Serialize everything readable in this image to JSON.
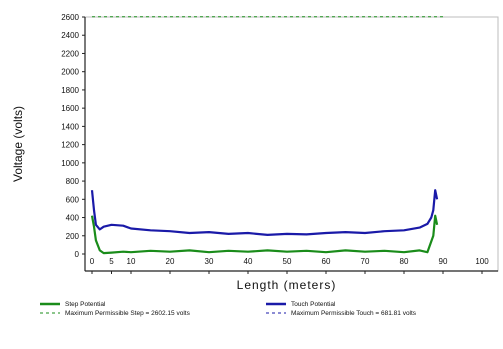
{
  "chart_data": {
    "type": "line",
    "title": "",
    "xlabel": "Length (meters)",
    "ylabel": "Voltage (volts)",
    "xlim": [
      0,
      100
    ],
    "ylim": [
      0,
      2600
    ],
    "x_ticks": [
      "0",
      "5",
      "10",
      "20",
      "30",
      "40",
      "50",
      "60",
      "70",
      "80",
      "90",
      "100"
    ],
    "x_tick_values": [
      0,
      5,
      10,
      20,
      30,
      40,
      50,
      60,
      70,
      80,
      90,
      100
    ],
    "y_ticks": [
      "0",
      "200",
      "400",
      "600",
      "800",
      "1000",
      "1200",
      "1400",
      "1600",
      "1800",
      "2000",
      "2200",
      "2400",
      "2600"
    ],
    "y_tick_values": [
      0,
      200,
      400,
      600,
      800,
      1000,
      1200,
      1400,
      1600,
      1800,
      2000,
      2200,
      2400,
      2600
    ],
    "grid": false,
    "legend_position": "bottom",
    "series": [
      {
        "name": "Step Potential",
        "color": "#1a8c1a",
        "style": "solid",
        "x": [
          0,
          0.5,
          1,
          2,
          3,
          5,
          8,
          10,
          15,
          20,
          25,
          30,
          35,
          40,
          45,
          50,
          55,
          60,
          65,
          70,
          75,
          80,
          84,
          86,
          87.5,
          88,
          88.5
        ],
        "y": [
          420,
          300,
          150,
          40,
          10,
          15,
          25,
          20,
          35,
          25,
          40,
          20,
          35,
          25,
          40,
          25,
          35,
          20,
          40,
          25,
          35,
          20,
          40,
          20,
          200,
          420,
          320
        ]
      },
      {
        "name": "Touch Potential",
        "color": "#1a1aa8",
        "style": "solid",
        "x": [
          0,
          0.5,
          1,
          2,
          3,
          5,
          8,
          10,
          15,
          20,
          25,
          30,
          35,
          40,
          45,
          50,
          55,
          60,
          65,
          70,
          75,
          80,
          84,
          86,
          87,
          87.5,
          88,
          88.5
        ],
        "y": [
          700,
          480,
          320,
          270,
          300,
          320,
          310,
          280,
          260,
          250,
          230,
          240,
          220,
          230,
          210,
          220,
          215,
          230,
          240,
          230,
          250,
          260,
          290,
          330,
          400,
          480,
          700,
          600
        ]
      },
      {
        "name": "Maximum Permissible Step = 2602.15 volts",
        "color": "#1a8c1a",
        "style": "dashed",
        "x": [
          0,
          90
        ],
        "y": [
          2602.15,
          2602.15
        ]
      },
      {
        "name": "Maximum Permissible Touch = 681.81 volts",
        "color": "#1a1aa8",
        "style": "dashed",
        "x": [],
        "y": []
      }
    ]
  }
}
